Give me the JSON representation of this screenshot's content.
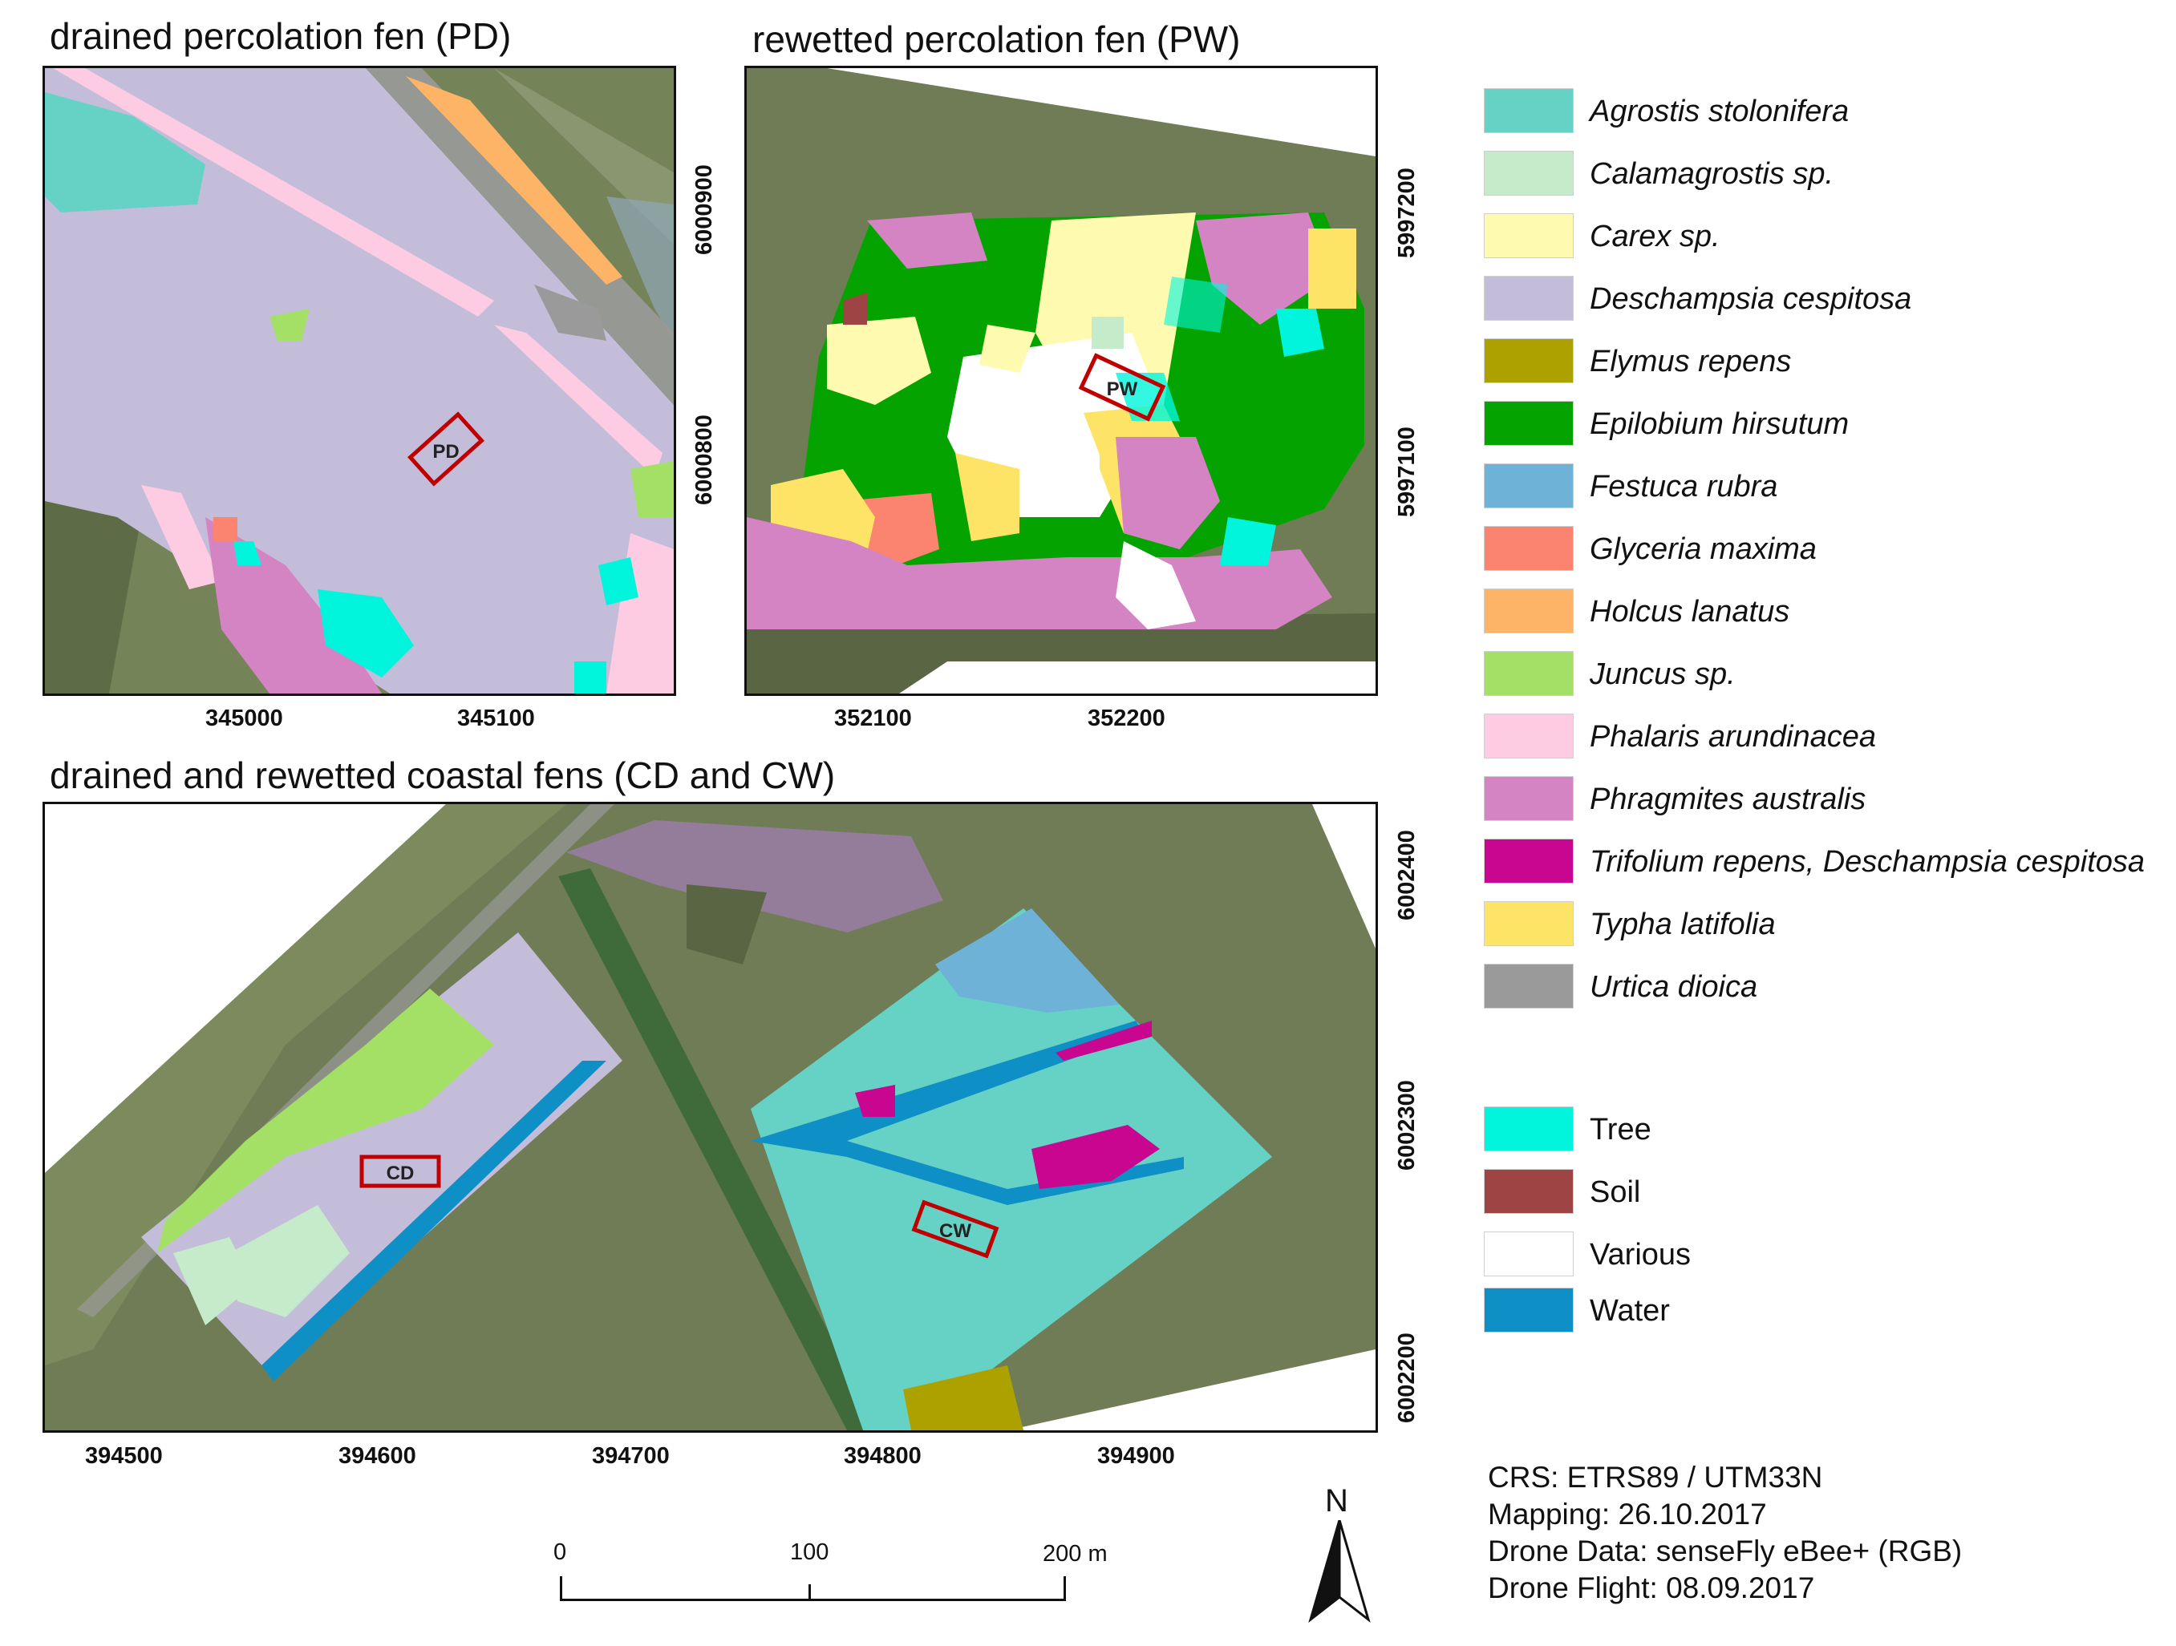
{
  "panels": {
    "pd": {
      "title": "drained percolation fen (PD)",
      "x_ticks": [
        "345000",
        "345100"
      ],
      "y_ticks": [
        "6000900",
        "6000800"
      ],
      "site_label": "PD"
    },
    "pw": {
      "title": "rewetted percolation fen (PW)",
      "x_ticks": [
        "352100",
        "352200"
      ],
      "y_ticks": [
        "5997200",
        "5997100"
      ],
      "site_label": "PW"
    },
    "coastal": {
      "title": "drained and rewetted coastal fens (CD and CW)",
      "x_ticks": [
        "394500",
        "394600",
        "394700",
        "394800",
        "394900"
      ],
      "y_ticks": [
        "6002400",
        "6002300",
        "6002200"
      ],
      "site_labels": [
        "CD",
        "CW"
      ]
    }
  },
  "legend": {
    "species": [
      {
        "label": "Agrostis stolonifera",
        "color": "#66d2c6"
      },
      {
        "label": "Calamagrostis sp.",
        "color": "#c6ebca"
      },
      {
        "label": "Carex sp.",
        "color": "#fefbb0"
      },
      {
        "label": "Deschampsia cespitosa",
        "color": "#c3bdda"
      },
      {
        "label": "Elymus repens",
        "color": "#ada100"
      },
      {
        "label": "Epilobium hirsutum",
        "color": "#05a300"
      },
      {
        "label": "Festuca rubra",
        "color": "#6eb3d7"
      },
      {
        "label": "Glyceria maxima",
        "color": "#fa8470"
      },
      {
        "label": "Holcus lanatus",
        "color": "#fdb466"
      },
      {
        "label": "Juncus sp.",
        "color": "#a4e065"
      },
      {
        "label": "Phalaris arundinacea",
        "color": "#fdcce3"
      },
      {
        "label": "Phragmites australis",
        "color": "#d483c3"
      },
      {
        "label": "Trifolium repens, Deschampsia cespitosa",
        "color": "#c8068f"
      },
      {
        "label": "Typha latifolia",
        "color": "#fde366"
      },
      {
        "label": "Urtica dioica",
        "color": "#9a9a9a"
      }
    ],
    "other": [
      {
        "label": "Tree",
        "color": "#00f5dc"
      },
      {
        "label": "Soil",
        "color": "#9e4444"
      },
      {
        "label": "Various",
        "color": "#ffffff"
      },
      {
        "label": "Water",
        "color": "#0e8fc6"
      }
    ]
  },
  "info": {
    "crs": "CRS: ETRS89 / UTM33N",
    "mapping": "Mapping: 26.10.2017",
    "drone_data": "Drone Data: senseFly eBee+ (RGB)",
    "drone_flight": "Drone Flight: 08.09.2017"
  },
  "scale_bar": {
    "labels": [
      "0",
      "100",
      "200 m"
    ]
  },
  "north_arrow": {
    "label": "N"
  },
  "colors": {
    "aerial": "#6f7c55",
    "aerial_dark": "#5a6544",
    "frame": "#111111",
    "site_box": "#c00000"
  }
}
